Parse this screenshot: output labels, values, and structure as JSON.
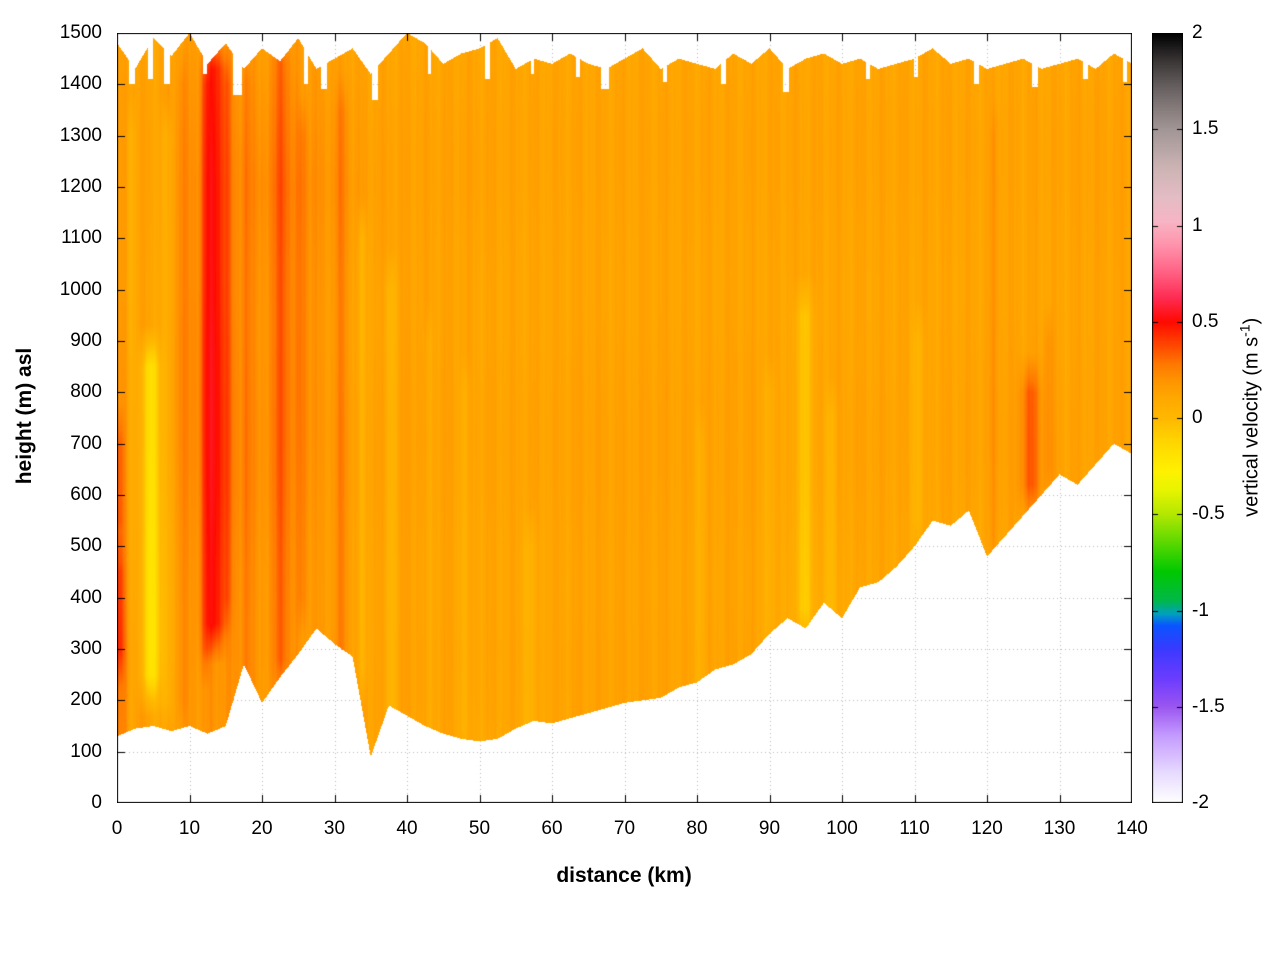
{
  "chart_data": {
    "type": "heatmap",
    "title": "",
    "xlabel": "distance (km)",
    "ylabel": "height (m) asl",
    "colorbar_label": {
      "pre": "vertical velocity (m s",
      "sup": "-1",
      "post": ")"
    },
    "xlim": [
      0,
      140
    ],
    "ylim": [
      0,
      1500
    ],
    "clim": [
      -2,
      2
    ],
    "xticks": [
      0,
      10,
      20,
      30,
      40,
      50,
      60,
      70,
      80,
      90,
      100,
      110,
      120,
      130,
      140
    ],
    "yticks": [
      0,
      100,
      200,
      300,
      400,
      500,
      600,
      700,
      800,
      900,
      1000,
      1100,
      1200,
      1300,
      1400,
      1500
    ],
    "cbticks": [
      2,
      1.5,
      1,
      0.5,
      0,
      -0.5,
      -1,
      -1.5,
      -2
    ],
    "grid_on": true,
    "grid_color": "#bdbdbd",
    "axis_color": "#000000",
    "background_color": "#ffffff",
    "colormap": [
      [
        -2.0,
        "#ffffff"
      ],
      [
        -1.85,
        "#e8dcff"
      ],
      [
        -1.65,
        "#c49aff"
      ],
      [
        -1.5,
        "#9a55f0"
      ],
      [
        -1.35,
        "#6a3cff"
      ],
      [
        -1.2,
        "#3a3aff"
      ],
      [
        -1.08,
        "#0a55ff"
      ],
      [
        -1.02,
        "#00a0c0"
      ],
      [
        -0.95,
        "#00b84a"
      ],
      [
        -0.8,
        "#00c800"
      ],
      [
        -0.65,
        "#5ad800"
      ],
      [
        -0.5,
        "#b4e800"
      ],
      [
        -0.38,
        "#e6f400"
      ],
      [
        -0.28,
        "#fff200"
      ],
      [
        -0.18,
        "#ffe000"
      ],
      [
        -0.08,
        "#ffcc00"
      ],
      [
        0.0,
        "#ffb800"
      ],
      [
        0.08,
        "#ffac00"
      ],
      [
        0.18,
        "#ff9800"
      ],
      [
        0.28,
        "#ff7800"
      ],
      [
        0.4,
        "#ff3c00"
      ],
      [
        0.5,
        "#ff0a00"
      ],
      [
        0.62,
        "#ff2a50"
      ],
      [
        0.75,
        "#ff5f82"
      ],
      [
        0.9,
        "#ff93ac"
      ],
      [
        1.02,
        "#f7b4c4"
      ],
      [
        1.15,
        "#e4bcc4"
      ],
      [
        1.3,
        "#ccb4b4"
      ],
      [
        1.5,
        "#a29696"
      ],
      [
        1.7,
        "#6e6666"
      ],
      [
        1.85,
        "#3c3838"
      ],
      [
        2.0,
        "#000000"
      ]
    ],
    "field": {
      "x_step": 5,
      "rows_y": [
        0,
        300,
        600,
        900,
        1200,
        1500
      ],
      "values": [
        [
          0.2,
          0.3,
          0.22,
          0.18,
          0.16,
          0.14
        ],
        [
          0.12,
          0.08,
          0.1,
          0.12,
          0.12,
          0.12
        ],
        [
          0.15,
          0.18,
          0.2,
          0.22,
          0.2,
          0.16
        ],
        [
          0.18,
          0.2,
          0.22,
          0.22,
          0.2,
          0.16
        ],
        [
          0.15,
          0.18,
          0.2,
          0.2,
          0.22,
          0.16
        ],
        [
          0.14,
          0.18,
          0.2,
          0.22,
          0.22,
          0.16
        ],
        [
          0.13,
          0.16,
          0.16,
          0.16,
          0.18,
          0.14
        ],
        [
          0.12,
          0.13,
          0.14,
          0.13,
          0.14,
          0.12
        ],
        [
          0.12,
          0.14,
          0.14,
          0.14,
          0.13,
          0.12
        ],
        [
          0.11,
          0.13,
          0.13,
          0.13,
          0.13,
          0.12
        ],
        [
          0.08,
          0.12,
          0.12,
          0.12,
          0.13,
          0.12
        ],
        [
          0.09,
          0.12,
          0.12,
          0.12,
          0.12,
          0.12
        ],
        [
          0.1,
          0.12,
          0.12,
          0.12,
          0.12,
          0.12
        ],
        [
          0.11,
          0.13,
          0.13,
          0.13,
          0.12,
          0.12
        ],
        [
          0.11,
          0.13,
          0.13,
          0.12,
          0.12,
          0.12
        ],
        [
          0.11,
          0.13,
          0.13,
          0.13,
          0.12,
          0.12
        ],
        [
          0.09,
          0.12,
          0.12,
          0.12,
          0.12,
          0.12
        ],
        [
          0.1,
          0.13,
          0.13,
          0.13,
          0.12,
          0.12
        ],
        [
          0.08,
          0.12,
          0.12,
          0.12,
          0.12,
          0.12
        ],
        [
          0.06,
          0.08,
          0.11,
          0.12,
          0.12,
          0.12
        ],
        [
          0.08,
          0.1,
          0.12,
          0.12,
          0.12,
          0.12
        ],
        [
          0.1,
          0.12,
          0.12,
          0.12,
          0.12,
          0.12
        ],
        [
          0.1,
          0.1,
          0.11,
          0.12,
          0.12,
          0.12
        ],
        [
          0.11,
          0.11,
          0.12,
          0.12,
          0.12,
          0.12
        ],
        [
          0.11,
          0.11,
          0.12,
          0.13,
          0.12,
          0.12
        ],
        [
          0.11,
          0.11,
          0.14,
          0.13,
          0.12,
          0.12
        ],
        [
          0.11,
          0.11,
          0.13,
          0.12,
          0.12,
          0.12
        ],
        [
          0.11,
          0.11,
          0.12,
          0.13,
          0.13,
          0.12
        ],
        [
          0.11,
          0.11,
          0.12,
          0.13,
          0.13,
          0.12
        ]
      ]
    },
    "streaks": [
      {
        "x": 0.4,
        "w": 0.6,
        "y0": 300,
        "y1": 450,
        "amp": 0.16
      },
      {
        "x": 0.4,
        "w": 0.6,
        "y0": 550,
        "y1": 700,
        "amp": 0.12
      },
      {
        "x": 2.0,
        "w": 0.6,
        "y0": 150,
        "y1": 1300,
        "amp": -0.08
      },
      {
        "x": 4.6,
        "w": 1.3,
        "y0": 250,
        "y1": 850,
        "amp": -0.3
      },
      {
        "x": 6.8,
        "w": 0.8,
        "y0": 200,
        "y1": 1300,
        "amp": -0.1
      },
      {
        "x": 9.0,
        "w": 0.7,
        "y0": 200,
        "y1": 1400,
        "amp": 0.06
      },
      {
        "x": 12.2,
        "w": 0.7,
        "y0": 300,
        "y1": 1400,
        "amp": 0.12
      },
      {
        "x": 13.5,
        "w": 1.4,
        "y0": 350,
        "y1": 1430,
        "amp": 0.3
      },
      {
        "x": 15.2,
        "w": 0.7,
        "y0": 400,
        "y1": 1400,
        "amp": 0.1
      },
      {
        "x": 17.8,
        "w": 0.7,
        "y0": 250,
        "y1": 1400,
        "amp": 0.08
      },
      {
        "x": 22.7,
        "w": 1.0,
        "y0": 280,
        "y1": 1440,
        "amp": 0.16
      },
      {
        "x": 25.5,
        "w": 0.7,
        "y0": 400,
        "y1": 1300,
        "amp": 0.08
      },
      {
        "x": 31.0,
        "w": 0.8,
        "y0": 260,
        "y1": 1350,
        "amp": 0.1
      },
      {
        "x": 33.8,
        "w": 0.6,
        "y0": 260,
        "y1": 1100,
        "amp": -0.12
      },
      {
        "x": 37.8,
        "w": 0.9,
        "y0": 150,
        "y1": 1000,
        "amp": -0.1
      },
      {
        "x": 43.0,
        "w": 0.6,
        "y0": 150,
        "y1": 900,
        "amp": -0.06
      },
      {
        "x": 48.0,
        "w": 0.7,
        "y0": 150,
        "y1": 800,
        "amp": -0.07
      },
      {
        "x": 57.0,
        "w": 0.9,
        "y0": 150,
        "y1": 500,
        "amp": -0.08
      },
      {
        "x": 80.5,
        "w": 0.7,
        "y0": 250,
        "y1": 700,
        "amp": -0.06
      },
      {
        "x": 90.0,
        "w": 0.8,
        "y0": 350,
        "y1": 800,
        "amp": -0.07
      },
      {
        "x": 94.8,
        "w": 1.2,
        "y0": 380,
        "y1": 950,
        "amp": -0.16
      },
      {
        "x": 98.5,
        "w": 0.8,
        "y0": 380,
        "y1": 750,
        "amp": -0.1
      },
      {
        "x": 110.5,
        "w": 0.9,
        "y0": 560,
        "y1": 900,
        "amp": -0.08
      },
      {
        "x": 121.0,
        "w": 0.6,
        "y0": 520,
        "y1": 1300,
        "amp": 0.06
      },
      {
        "x": 126.0,
        "w": 1.3,
        "y0": 620,
        "y1": 800,
        "amp": 0.2
      },
      {
        "x": 128.5,
        "w": 0.7,
        "y0": 650,
        "y1": 900,
        "amp": 0.08
      }
    ],
    "terrain": {
      "x_step": 2.5,
      "heights": [
        130,
        145,
        150,
        140,
        150,
        135,
        150,
        270,
        195,
        245,
        290,
        340,
        310,
        285,
        90,
        190,
        170,
        150,
        135,
        125,
        120,
        125,
        145,
        160,
        155,
        165,
        175,
        185,
        195,
        200,
        205,
        225,
        235,
        260,
        270,
        290,
        330,
        360,
        340,
        390,
        360,
        420,
        430,
        460,
        500,
        550,
        540,
        570,
        480,
        520,
        560,
        600,
        640,
        620,
        660,
        700,
        680
      ]
    },
    "top": {
      "x_step": 2.5,
      "heights": [
        1480,
        1430,
        1490,
        1455,
        1500,
        1440,
        1480,
        1430,
        1470,
        1445,
        1490,
        1430,
        1450,
        1470,
        1420,
        1460,
        1500,
        1480,
        1440,
        1460,
        1470,
        1490,
        1430,
        1450,
        1440,
        1460,
        1440,
        1430,
        1450,
        1470,
        1430,
        1450,
        1440,
        1430,
        1460,
        1440,
        1470,
        1430,
        1450,
        1460,
        1440,
        1450,
        1430,
        1440,
        1450,
        1470,
        1440,
        1450,
        1430,
        1440,
        1450,
        1430,
        1440,
        1450,
        1430,
        1460,
        1440
      ]
    },
    "gaps": [
      {
        "x": 2.1,
        "w": 0.8,
        "b": 1400
      },
      {
        "x": 4.6,
        "w": 0.6,
        "b": 1410
      },
      {
        "x": 6.9,
        "w": 0.9,
        "b": 1400
      },
      {
        "x": 12.1,
        "w": 0.5,
        "b": 1420
      },
      {
        "x": 16.6,
        "w": 1.2,
        "b": 1380
      },
      {
        "x": 26.1,
        "w": 0.6,
        "b": 1400
      },
      {
        "x": 28.6,
        "w": 0.8,
        "b": 1390
      },
      {
        "x": 35.6,
        "w": 0.9,
        "b": 1370
      },
      {
        "x": 43.1,
        "w": 0.5,
        "b": 1420
      },
      {
        "x": 51.1,
        "w": 0.6,
        "b": 1410
      },
      {
        "x": 57.3,
        "w": 0.5,
        "b": 1420
      },
      {
        "x": 63.6,
        "w": 0.5,
        "b": 1415
      },
      {
        "x": 67.3,
        "w": 1.1,
        "b": 1390
      },
      {
        "x": 75.6,
        "w": 0.6,
        "b": 1405
      },
      {
        "x": 83.6,
        "w": 0.7,
        "b": 1400
      },
      {
        "x": 92.3,
        "w": 0.9,
        "b": 1385
      },
      {
        "x": 103.6,
        "w": 0.6,
        "b": 1410
      },
      {
        "x": 110.2,
        "w": 0.5,
        "b": 1415
      },
      {
        "x": 118.6,
        "w": 0.7,
        "b": 1400
      },
      {
        "x": 126.6,
        "w": 0.8,
        "b": 1395
      },
      {
        "x": 133.6,
        "w": 0.6,
        "b": 1410
      },
      {
        "x": 139.0,
        "w": 0.6,
        "b": 1405
      }
    ]
  }
}
